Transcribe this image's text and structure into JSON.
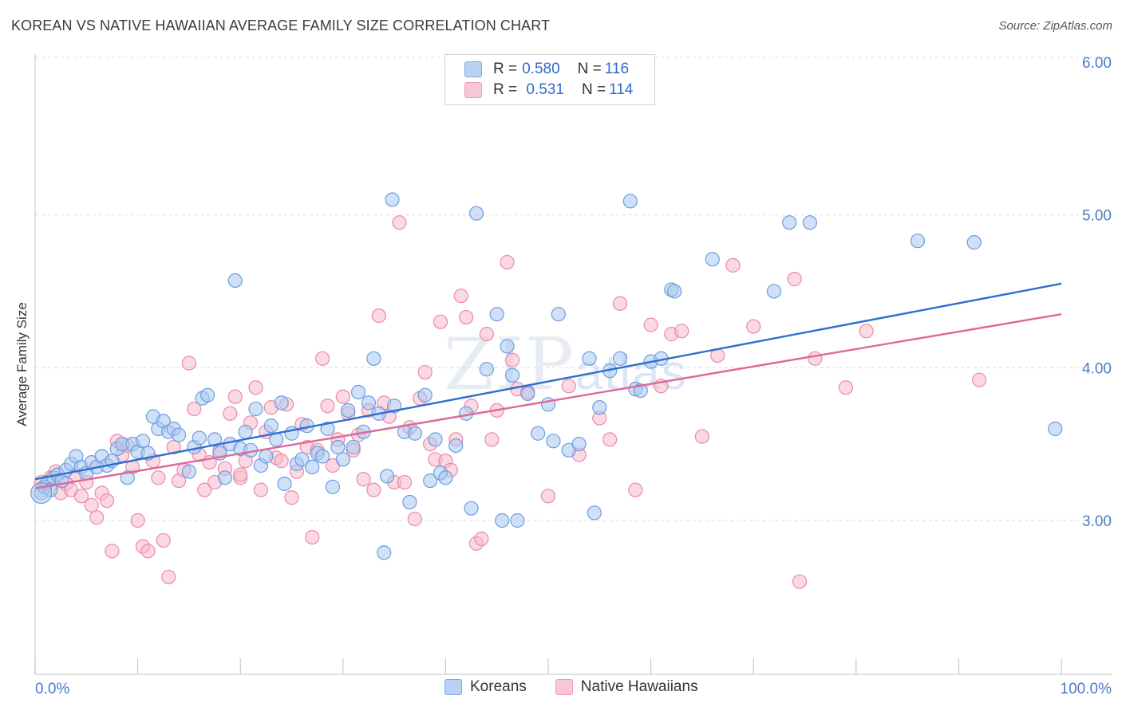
{
  "title": "KOREAN VS NATIVE HAWAIIAN AVERAGE FAMILY SIZE CORRELATION CHART",
  "source": "Source: ZipAtlas.com",
  "watermark": {
    "main": "ZIP",
    "sub": "atlas"
  },
  "legend_top": {
    "rows": [
      {
        "r_key": "R = ",
        "r_val": "0.580",
        "n_key": "N = ",
        "n_val": "116",
        "color": "#b8d2f3"
      },
      {
        "r_key": "R = ",
        "r_val": " 0.531",
        "n_key": "N = ",
        "n_val": "114",
        "color": "#f8c6d4"
      }
    ]
  },
  "legend_bottom": [
    {
      "label": "Koreans",
      "color": "#b8d2f3"
    },
    {
      "label": "Native Hawaiians",
      "color": "#f8c6d4"
    }
  ],
  "colors": {
    "koreans_fill": "#a9c8f0",
    "koreans_stroke": "#6b9de0",
    "koreans_line": "#2f6fd0",
    "hawaiians_fill": "#f7b9cb",
    "hawaiians_stroke": "#ea8aa8",
    "hawaiians_line": "#e0679a",
    "grid": "#dcdcdc",
    "axis": "#4a7cc9"
  },
  "chart_data": {
    "type": "scatter",
    "title": "KOREAN VS NATIVE HAWAIIAN AVERAGE FAMILY SIZE CORRELATION CHART",
    "xlabel": "",
    "ylabel": "Average Family Size",
    "x_unit": "%",
    "xlim": [
      0,
      100
    ],
    "ylim": [
      2.0,
      6.1
    ],
    "x_tick_labels": [
      "0.0%",
      "100.0%"
    ],
    "y_ticks": [
      3.0,
      4.0,
      5.0,
      6.0
    ],
    "y_tick_labels": [
      "3.00",
      "4.00",
      "5.00",
      "6.00"
    ],
    "grid": true,
    "legend_position": "top-center",
    "series": [
      {
        "name": "Koreans",
        "R": 0.58,
        "N": 116,
        "trend": {
          "x": [
            0,
            100
          ],
          "y": [
            3.27,
            4.55
          ]
        },
        "points": [
          [
            0.6,
            3.18
          ],
          [
            0.9,
            3.22
          ],
          [
            1.2,
            3.25
          ],
          [
            1.5,
            3.2
          ],
          [
            1.8,
            3.28
          ],
          [
            2.2,
            3.3
          ],
          [
            2.6,
            3.26
          ],
          [
            3,
            3.33
          ],
          [
            3.5,
            3.37
          ],
          [
            4,
            3.42
          ],
          [
            4.5,
            3.35
          ],
          [
            5,
            3.31
          ],
          [
            5.5,
            3.38
          ],
          [
            6,
            3.35
          ],
          [
            6.5,
            3.42
          ],
          [
            7,
            3.36
          ],
          [
            7.5,
            3.39
          ],
          [
            8,
            3.47
          ],
          [
            8.5,
            3.5
          ],
          [
            9,
            3.28
          ],
          [
            9.5,
            3.5
          ],
          [
            10,
            3.45
          ],
          [
            10.5,
            3.52
          ],
          [
            11,
            3.44
          ],
          [
            11.5,
            3.68
          ],
          [
            12,
            3.6
          ],
          [
            12.5,
            3.65
          ],
          [
            13,
            3.58
          ],
          [
            13.5,
            3.6
          ],
          [
            14,
            3.56
          ],
          [
            15,
            3.32
          ],
          [
            15.5,
            3.48
          ],
          [
            16,
            3.54
          ],
          [
            16.3,
            3.8
          ],
          [
            16.8,
            3.82
          ],
          [
            17.5,
            3.53
          ],
          [
            18,
            3.44
          ],
          [
            18.5,
            3.28
          ],
          [
            19,
            3.5
          ],
          [
            19.5,
            4.57
          ],
          [
            20,
            3.47
          ],
          [
            20.5,
            3.58
          ],
          [
            21,
            3.46
          ],
          [
            21.5,
            3.73
          ],
          [
            22,
            3.36
          ],
          [
            22.5,
            3.42
          ],
          [
            23,
            3.62
          ],
          [
            23.5,
            3.53
          ],
          [
            24,
            3.77
          ],
          [
            24.3,
            3.24
          ],
          [
            25,
            3.57
          ],
          [
            25.5,
            3.37
          ],
          [
            26,
            3.4
          ],
          [
            26.5,
            3.62
          ],
          [
            27,
            3.35
          ],
          [
            27.5,
            3.44
          ],
          [
            28,
            3.42
          ],
          [
            28.5,
            3.6
          ],
          [
            29,
            3.22
          ],
          [
            29.5,
            3.48
          ],
          [
            30,
            3.4
          ],
          [
            30.5,
            3.72
          ],
          [
            31,
            3.48
          ],
          [
            31.5,
            3.84
          ],
          [
            32,
            3.58
          ],
          [
            32.5,
            3.77
          ],
          [
            33,
            4.06
          ],
          [
            33.5,
            3.7
          ],
          [
            34,
            2.79
          ],
          [
            34.3,
            3.29
          ],
          [
            34.8,
            5.1
          ],
          [
            35,
            3.75
          ],
          [
            36,
            3.58
          ],
          [
            36.5,
            3.12
          ],
          [
            37,
            3.57
          ],
          [
            38,
            3.82
          ],
          [
            38.5,
            3.26
          ],
          [
            39,
            3.53
          ],
          [
            39.5,
            3.31
          ],
          [
            40,
            3.28
          ],
          [
            41,
            3.49
          ],
          [
            42,
            3.7
          ],
          [
            42.5,
            3.08
          ],
          [
            43,
            5.01
          ],
          [
            44,
            3.99
          ],
          [
            45,
            4.35
          ],
          [
            45.5,
            3.0
          ],
          [
            46,
            4.14
          ],
          [
            46.5,
            3.95
          ],
          [
            47,
            3.0
          ],
          [
            48,
            3.83
          ],
          [
            49,
            3.57
          ],
          [
            50,
            3.76
          ],
          [
            50.5,
            3.52
          ],
          [
            51,
            4.35
          ],
          [
            52,
            3.46
          ],
          [
            53,
            3.5
          ],
          [
            54,
            4.06
          ],
          [
            54.5,
            3.05
          ],
          [
            55,
            3.74
          ],
          [
            56,
            3.98
          ],
          [
            57,
            4.06
          ],
          [
            58,
            5.09
          ],
          [
            58.5,
            3.86
          ],
          [
            59,
            3.85
          ],
          [
            60,
            4.04
          ],
          [
            61,
            4.06
          ],
          [
            62,
            4.51
          ],
          [
            62.3,
            4.5
          ],
          [
            66,
            4.71
          ],
          [
            72,
            4.5
          ],
          [
            73.5,
            4.95
          ],
          [
            75.5,
            4.95
          ],
          [
            86,
            4.83
          ],
          [
            91.5,
            4.82
          ],
          [
            99.4,
            3.6
          ]
        ]
      },
      {
        "name": "Native Hawaiians",
        "R": 0.531,
        "N": 114,
        "trend": {
          "x": [
            0,
            100
          ],
          "y": [
            3.21,
            4.35
          ]
        },
        "points": [
          [
            0.6,
            3.25
          ],
          [
            1,
            3.22
          ],
          [
            1.5,
            3.28
          ],
          [
            2,
            3.32
          ],
          [
            2.5,
            3.18
          ],
          [
            3,
            3.24
          ],
          [
            3.5,
            3.2
          ],
          [
            4,
            3.3
          ],
          [
            4.5,
            3.16
          ],
          [
            5,
            3.25
          ],
          [
            5.5,
            3.1
          ],
          [
            6,
            3.02
          ],
          [
            6.5,
            3.18
          ],
          [
            7,
            3.13
          ],
          [
            7.5,
            2.8
          ],
          [
            8,
            3.52
          ],
          [
            8.5,
            3.43
          ],
          [
            9,
            3.49
          ],
          [
            9.5,
            3.35
          ],
          [
            10,
            3.0
          ],
          [
            10.5,
            2.83
          ],
          [
            11,
            2.8
          ],
          [
            11.5,
            3.39
          ],
          [
            12,
            3.28
          ],
          [
            12.5,
            2.87
          ],
          [
            13,
            2.63
          ],
          [
            13.5,
            3.48
          ],
          [
            14,
            3.26
          ],
          [
            14.5,
            3.33
          ],
          [
            15,
            4.03
          ],
          [
            15.5,
            3.73
          ],
          [
            16,
            3.43
          ],
          [
            16.5,
            3.2
          ],
          [
            17,
            3.38
          ],
          [
            17.5,
            3.25
          ],
          [
            18,
            3.46
          ],
          [
            18.5,
            3.34
          ],
          [
            19,
            3.7
          ],
          [
            19.5,
            3.81
          ],
          [
            20,
            3.28
          ],
          [
            20.5,
            3.39
          ],
          [
            21,
            3.64
          ],
          [
            21.5,
            3.87
          ],
          [
            22,
            3.2
          ],
          [
            22.5,
            3.58
          ],
          [
            23,
            3.74
          ],
          [
            23.5,
            3.41
          ],
          [
            24,
            3.39
          ],
          [
            24.5,
            3.76
          ],
          [
            25,
            3.15
          ],
          [
            25.5,
            3.32
          ],
          [
            26,
            3.63
          ],
          [
            26.5,
            3.48
          ],
          [
            27,
            2.89
          ],
          [
            27.5,
            3.46
          ],
          [
            28,
            4.06
          ],
          [
            28.5,
            3.75
          ],
          [
            29,
            3.36
          ],
          [
            29.5,
            3.53
          ],
          [
            30,
            3.81
          ],
          [
            30.5,
            3.7
          ],
          [
            31,
            3.46
          ],
          [
            31.5,
            3.56
          ],
          [
            32,
            3.27
          ],
          [
            32.5,
            3.72
          ],
          [
            33,
            3.2
          ],
          [
            33.5,
            4.34
          ],
          [
            34,
            3.77
          ],
          [
            34.5,
            3.68
          ],
          [
            35,
            3.25
          ],
          [
            35.5,
            4.95
          ],
          [
            36,
            3.25
          ],
          [
            36.5,
            3.61
          ],
          [
            37,
            3.01
          ],
          [
            37.5,
            3.8
          ],
          [
            38,
            3.97
          ],
          [
            38.5,
            3.5
          ],
          [
            39,
            3.4
          ],
          [
            39.5,
            4.3
          ],
          [
            40,
            3.39
          ],
          [
            40.5,
            3.33
          ],
          [
            41,
            3.53
          ],
          [
            41.5,
            4.47
          ],
          [
            42,
            4.33
          ],
          [
            42.5,
            3.75
          ],
          [
            43,
            2.85
          ],
          [
            43.5,
            2.88
          ],
          [
            44,
            4.22
          ],
          [
            44.5,
            3.53
          ],
          [
            45,
            3.72
          ],
          [
            46,
            4.69
          ],
          [
            46.5,
            4.05
          ],
          [
            47,
            3.86
          ],
          [
            48,
            3.84
          ],
          [
            50,
            3.16
          ],
          [
            52,
            3.88
          ],
          [
            53,
            3.43
          ],
          [
            55,
            3.67
          ],
          [
            56,
            3.53
          ],
          [
            57,
            4.42
          ],
          [
            58.5,
            3.2
          ],
          [
            60,
            4.28
          ],
          [
            61,
            3.88
          ],
          [
            62,
            4.22
          ],
          [
            63,
            4.24
          ],
          [
            65,
            3.55
          ],
          [
            66.5,
            4.08
          ],
          [
            68,
            4.67
          ],
          [
            70,
            4.27
          ],
          [
            74,
            4.58
          ],
          [
            74.5,
            2.6
          ],
          [
            76,
            4.06
          ],
          [
            79,
            3.87
          ],
          [
            81,
            4.24
          ],
          [
            92,
            3.92
          ],
          [
            20,
            3.3
          ]
        ]
      }
    ]
  }
}
